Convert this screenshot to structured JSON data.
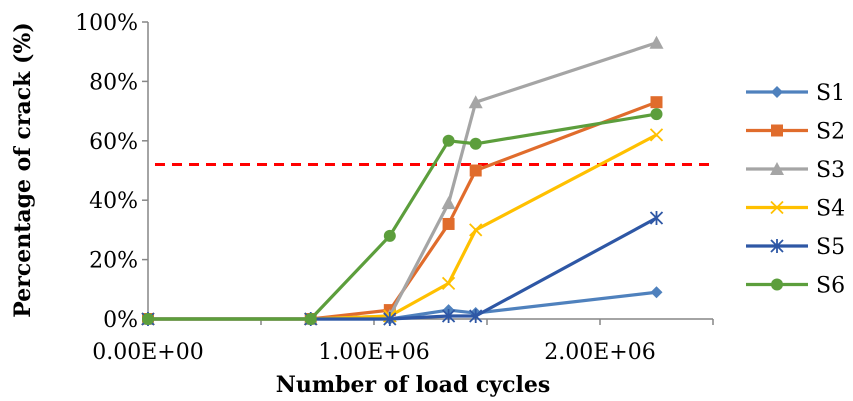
{
  "chart_data": {
    "type": "line",
    "title": "",
    "xlabel": "Number of load cycles",
    "ylabel": "Percentage of crack (%)",
    "xlim": [
      0,
      2500000
    ],
    "ylim": [
      0,
      100
    ],
    "xticks": [
      0,
      1000000,
      2000000
    ],
    "xtick_labels": [
      "0.00E+00",
      "1.00E+06",
      "2.00E+06"
    ],
    "yticks": [
      0,
      20,
      40,
      60,
      80,
      100
    ],
    "ytick_labels": [
      "0%",
      "20%",
      "40%",
      "60%",
      "80%",
      "100%"
    ],
    "grid": false,
    "legend": "right",
    "threshold": {
      "y": 52,
      "color": "#ff0000",
      "style": "dashed"
    },
    "series": [
      {
        "name": "S1",
        "color": "#4f81bd",
        "marker": "diamond",
        "x": [
          0,
          720000,
          1070000,
          1330000,
          1450000,
          2250000
        ],
        "y": [
          0,
          0,
          0,
          3,
          2,
          9
        ]
      },
      {
        "name": "S2",
        "color": "#e06c2c",
        "marker": "square",
        "x": [
          0,
          720000,
          1070000,
          1330000,
          1450000,
          2250000
        ],
        "y": [
          0,
          0,
          3,
          32,
          50,
          73
        ]
      },
      {
        "name": "S3",
        "color": "#a5a5a5",
        "marker": "triangle",
        "x": [
          0,
          720000,
          1070000,
          1330000,
          1450000,
          2250000
        ],
        "y": [
          0,
          0,
          1,
          39,
          73,
          93
        ]
      },
      {
        "name": "S4",
        "color": "#ffc000",
        "marker": "x",
        "x": [
          0,
          720000,
          1070000,
          1330000,
          1450000,
          2250000
        ],
        "y": [
          0,
          0,
          1,
          12,
          30,
          62
        ]
      },
      {
        "name": "S5",
        "color": "#2e57a5",
        "marker": "star",
        "x": [
          0,
          720000,
          1070000,
          1330000,
          1450000,
          2250000
        ],
        "y": [
          0,
          0,
          0,
          1,
          1,
          34
        ]
      },
      {
        "name": "S6",
        "color": "#5c9e3c",
        "marker": "circle",
        "x": [
          0,
          720000,
          1070000,
          1330000,
          1450000,
          2250000
        ],
        "y": [
          0,
          0,
          28,
          60,
          59,
          69
        ]
      }
    ]
  }
}
